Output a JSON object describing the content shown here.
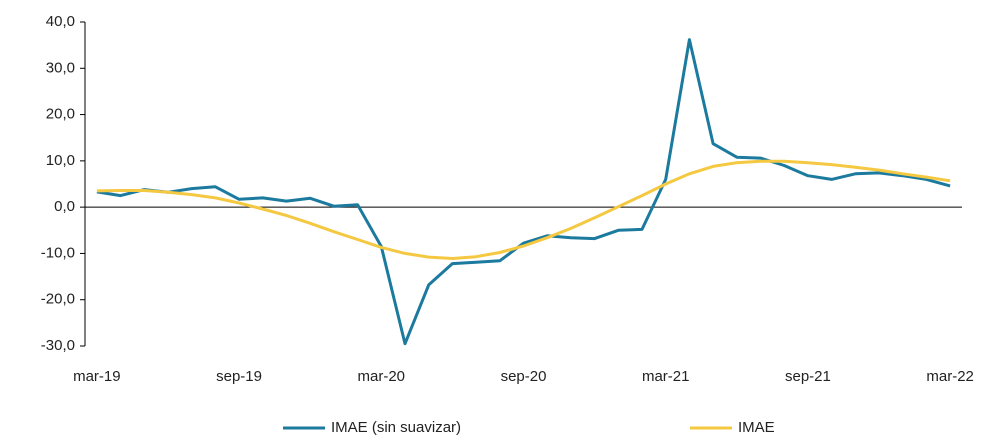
{
  "chart_data": {
    "type": "line",
    "categories": [
      "mar-19",
      null,
      null,
      null,
      null,
      null,
      "sep-19",
      null,
      null,
      null,
      null,
      null,
      "mar-20",
      null,
      null,
      null,
      null,
      null,
      "sep-20",
      null,
      null,
      null,
      null,
      null,
      "mar-21",
      null,
      null,
      null,
      null,
      null,
      "sep-21",
      null,
      null,
      null,
      null,
      null,
      "mar-22"
    ],
    "series": [
      {
        "name": "IMAE (sin suavizar)",
        "color": "#1b7a9e",
        "values": [
          3.3,
          2.5,
          3.8,
          3.2,
          4.0,
          4.4,
          1.7,
          2.0,
          1.3,
          1.9,
          0.2,
          0.5,
          -8.5,
          -29.5,
          -16.8,
          -12.2,
          -11.9,
          -11.6,
          -7.8,
          -6.2,
          -6.6,
          -6.8,
          -5.0,
          -4.8,
          6.0,
          36.2,
          13.7,
          10.8,
          10.6,
          9.0,
          6.8,
          6.0,
          7.2,
          7.4,
          6.8,
          6.0,
          4.6
        ]
      },
      {
        "name": "IMAE",
        "color": "#f5c842",
        "values": [
          3.5,
          3.6,
          3.6,
          3.2,
          2.7,
          2.0,
          0.9,
          -0.4,
          -1.8,
          -3.5,
          -5.3,
          -7.0,
          -8.7,
          -10.0,
          -10.8,
          -11.1,
          -10.7,
          -9.8,
          -8.4,
          -6.6,
          -4.6,
          -2.3,
          0.1,
          2.5,
          5.0,
          7.2,
          8.8,
          9.6,
          9.9,
          9.9,
          9.6,
          9.2,
          8.6,
          8.0,
          7.2,
          6.5,
          5.7
        ]
      }
    ],
    "ylim": [
      -30,
      40
    ],
    "yticks": [
      {
        "value": -30,
        "label": "-30,0"
      },
      {
        "value": -20,
        "label": "-20,0"
      },
      {
        "value": -10,
        "label": "-10,0"
      },
      {
        "value": 0,
        "label": "0,0"
      },
      {
        "value": 10,
        "label": "10,0"
      },
      {
        "value": 20,
        "label": "20,0"
      },
      {
        "value": 30,
        "label": "30,0"
      },
      {
        "value": 40,
        "label": "40,0"
      }
    ],
    "legend": "bottom"
  }
}
